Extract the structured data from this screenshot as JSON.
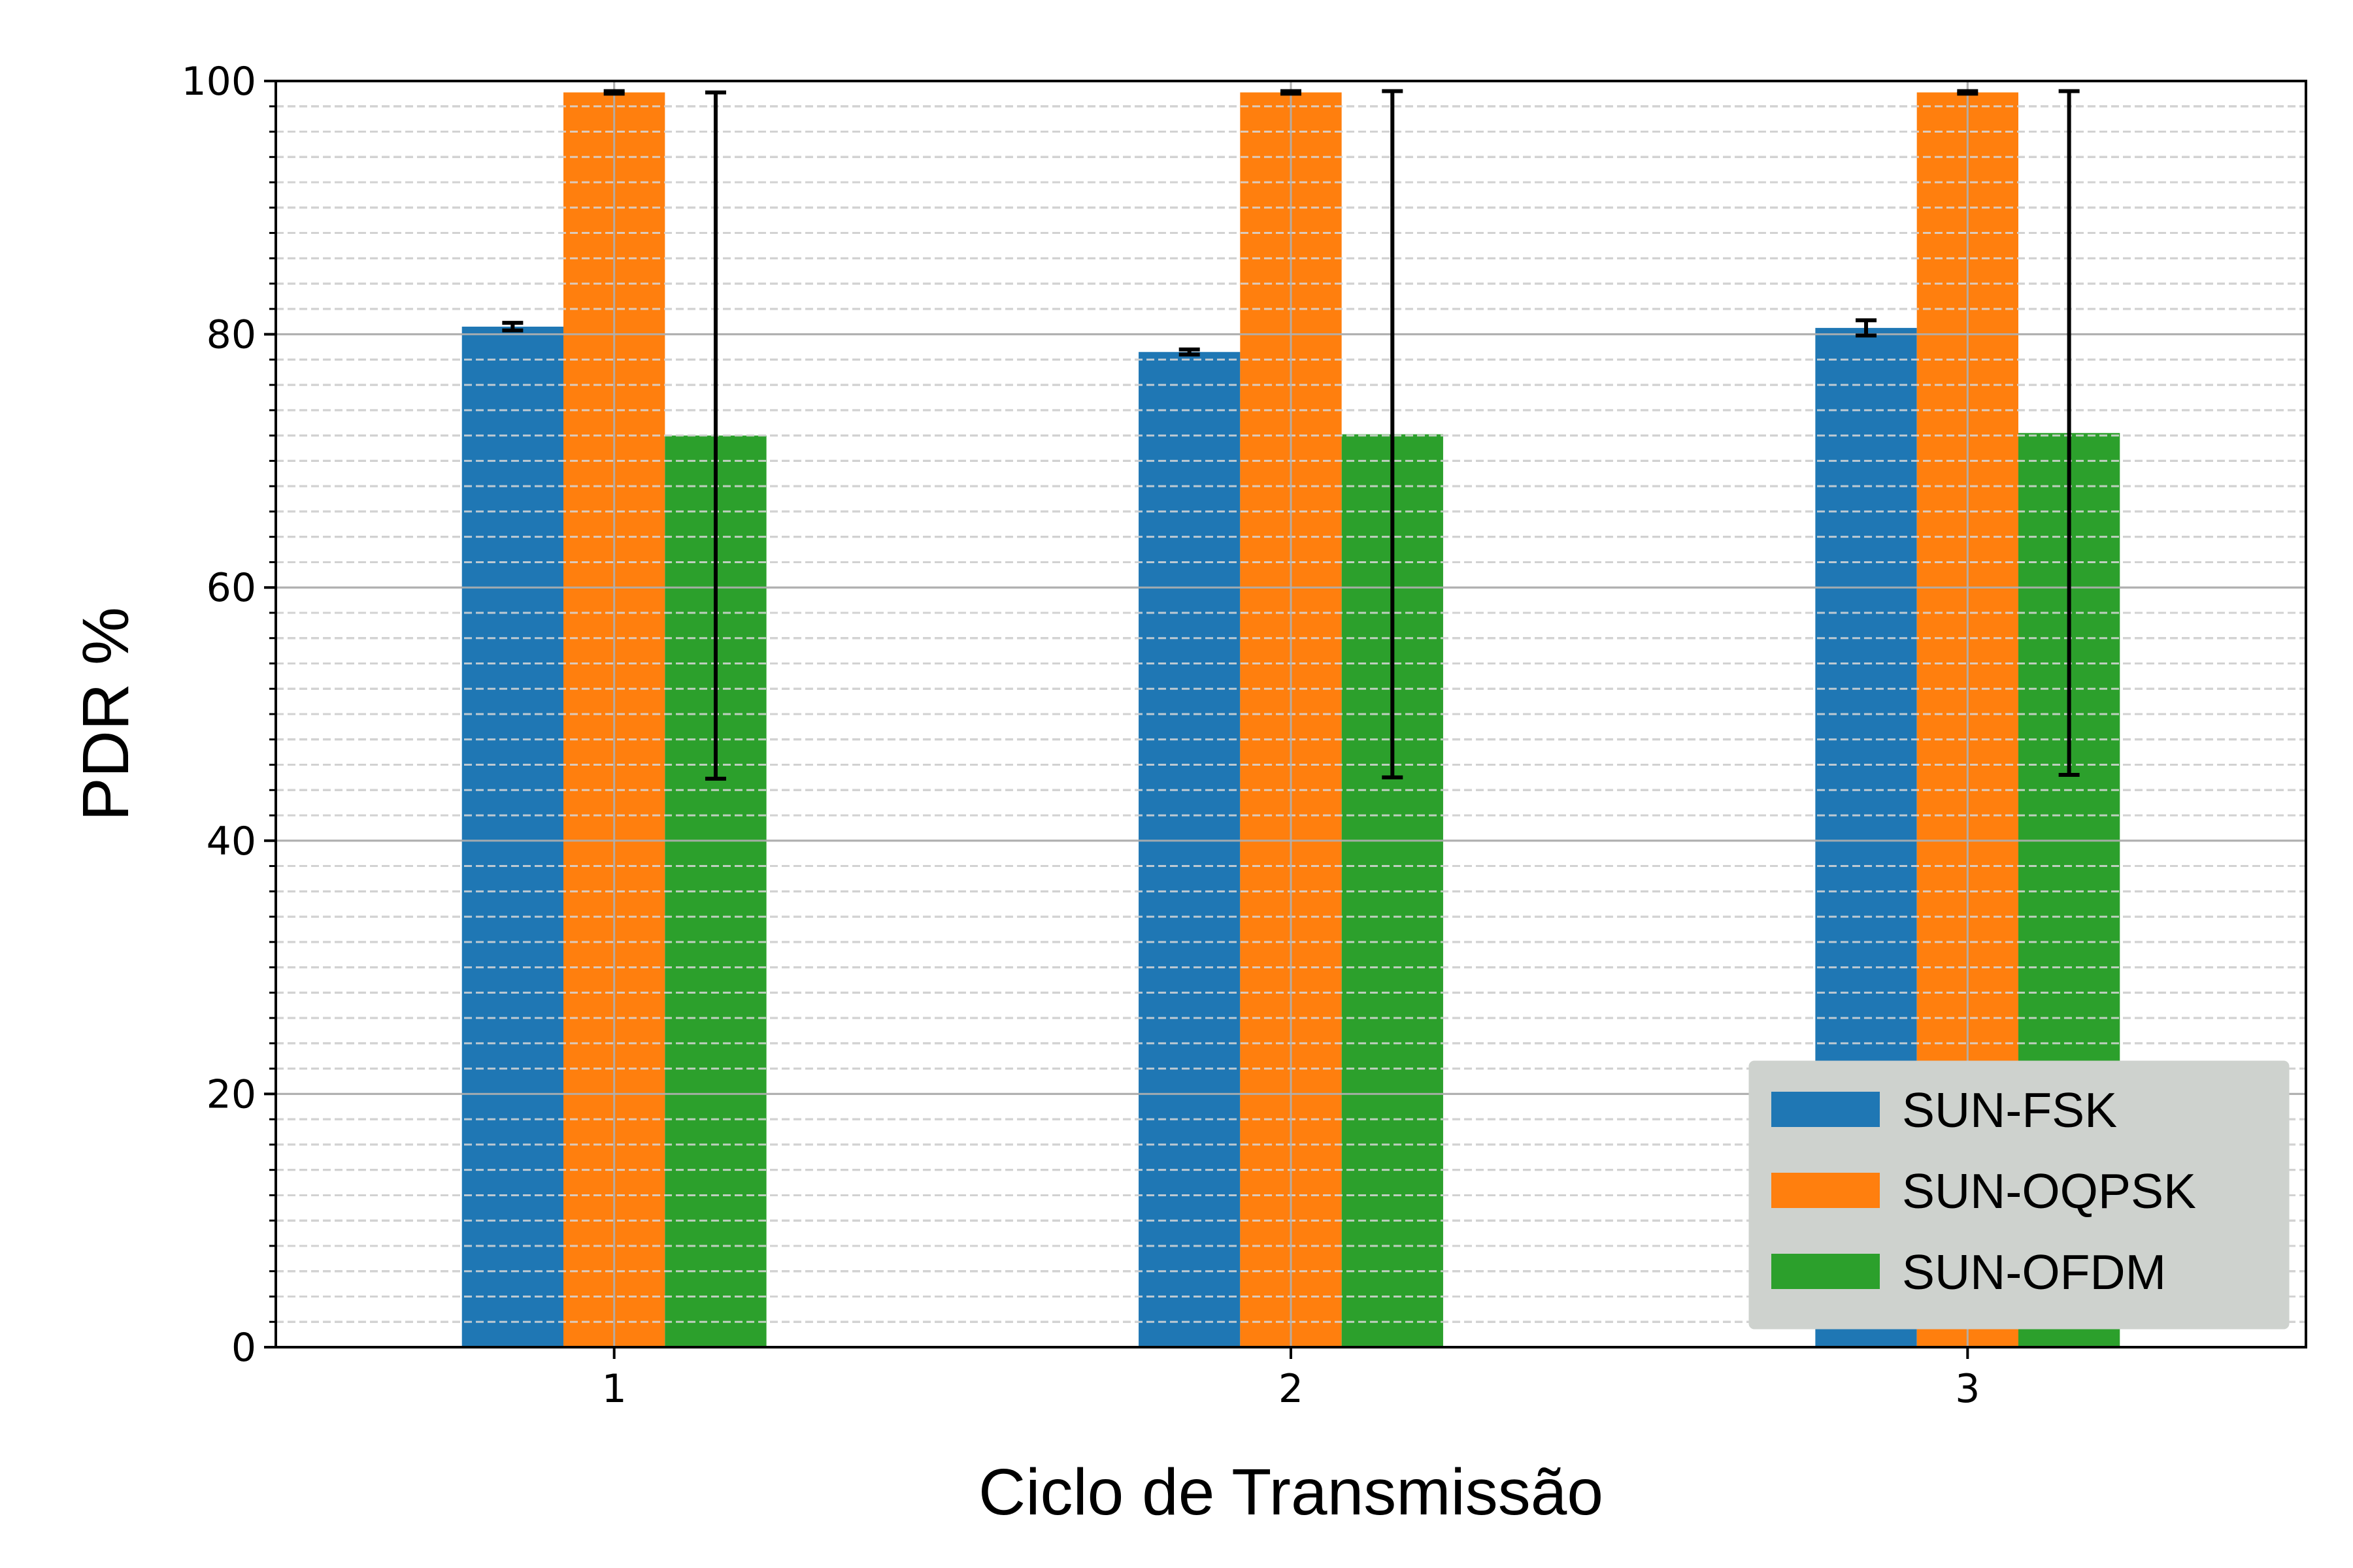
{
  "chart_data": {
    "type": "bar",
    "title": "",
    "xlabel": "Ciclo de Transmissão",
    "ylabel": "PDR %",
    "categories": [
      "1",
      "2",
      "3"
    ],
    "ylim": [
      0,
      100
    ],
    "yticks": [
      0,
      20,
      40,
      60,
      80,
      100
    ],
    "grid": true,
    "grid_style": "major solid and minor dashed gridlines",
    "legend_position": "lower-right",
    "series": [
      {
        "name": "SUN-FSK",
        "color": "#1f77b4",
        "values": [
          80.6,
          78.6,
          80.5
        ],
        "err": [
          0.3,
          0.2,
          0.6
        ]
      },
      {
        "name": "SUN-OQPSK",
        "color": "#ff7f0e",
        "values": [
          99.1,
          99.1,
          99.1
        ],
        "err": [
          0.1,
          0.1,
          0.1
        ]
      },
      {
        "name": "SUN-OFDM",
        "color": "#2ca02c",
        "values": [
          72.0,
          72.1,
          72.2
        ],
        "err": [
          27.1,
          27.1,
          27.0
        ]
      }
    ]
  }
}
